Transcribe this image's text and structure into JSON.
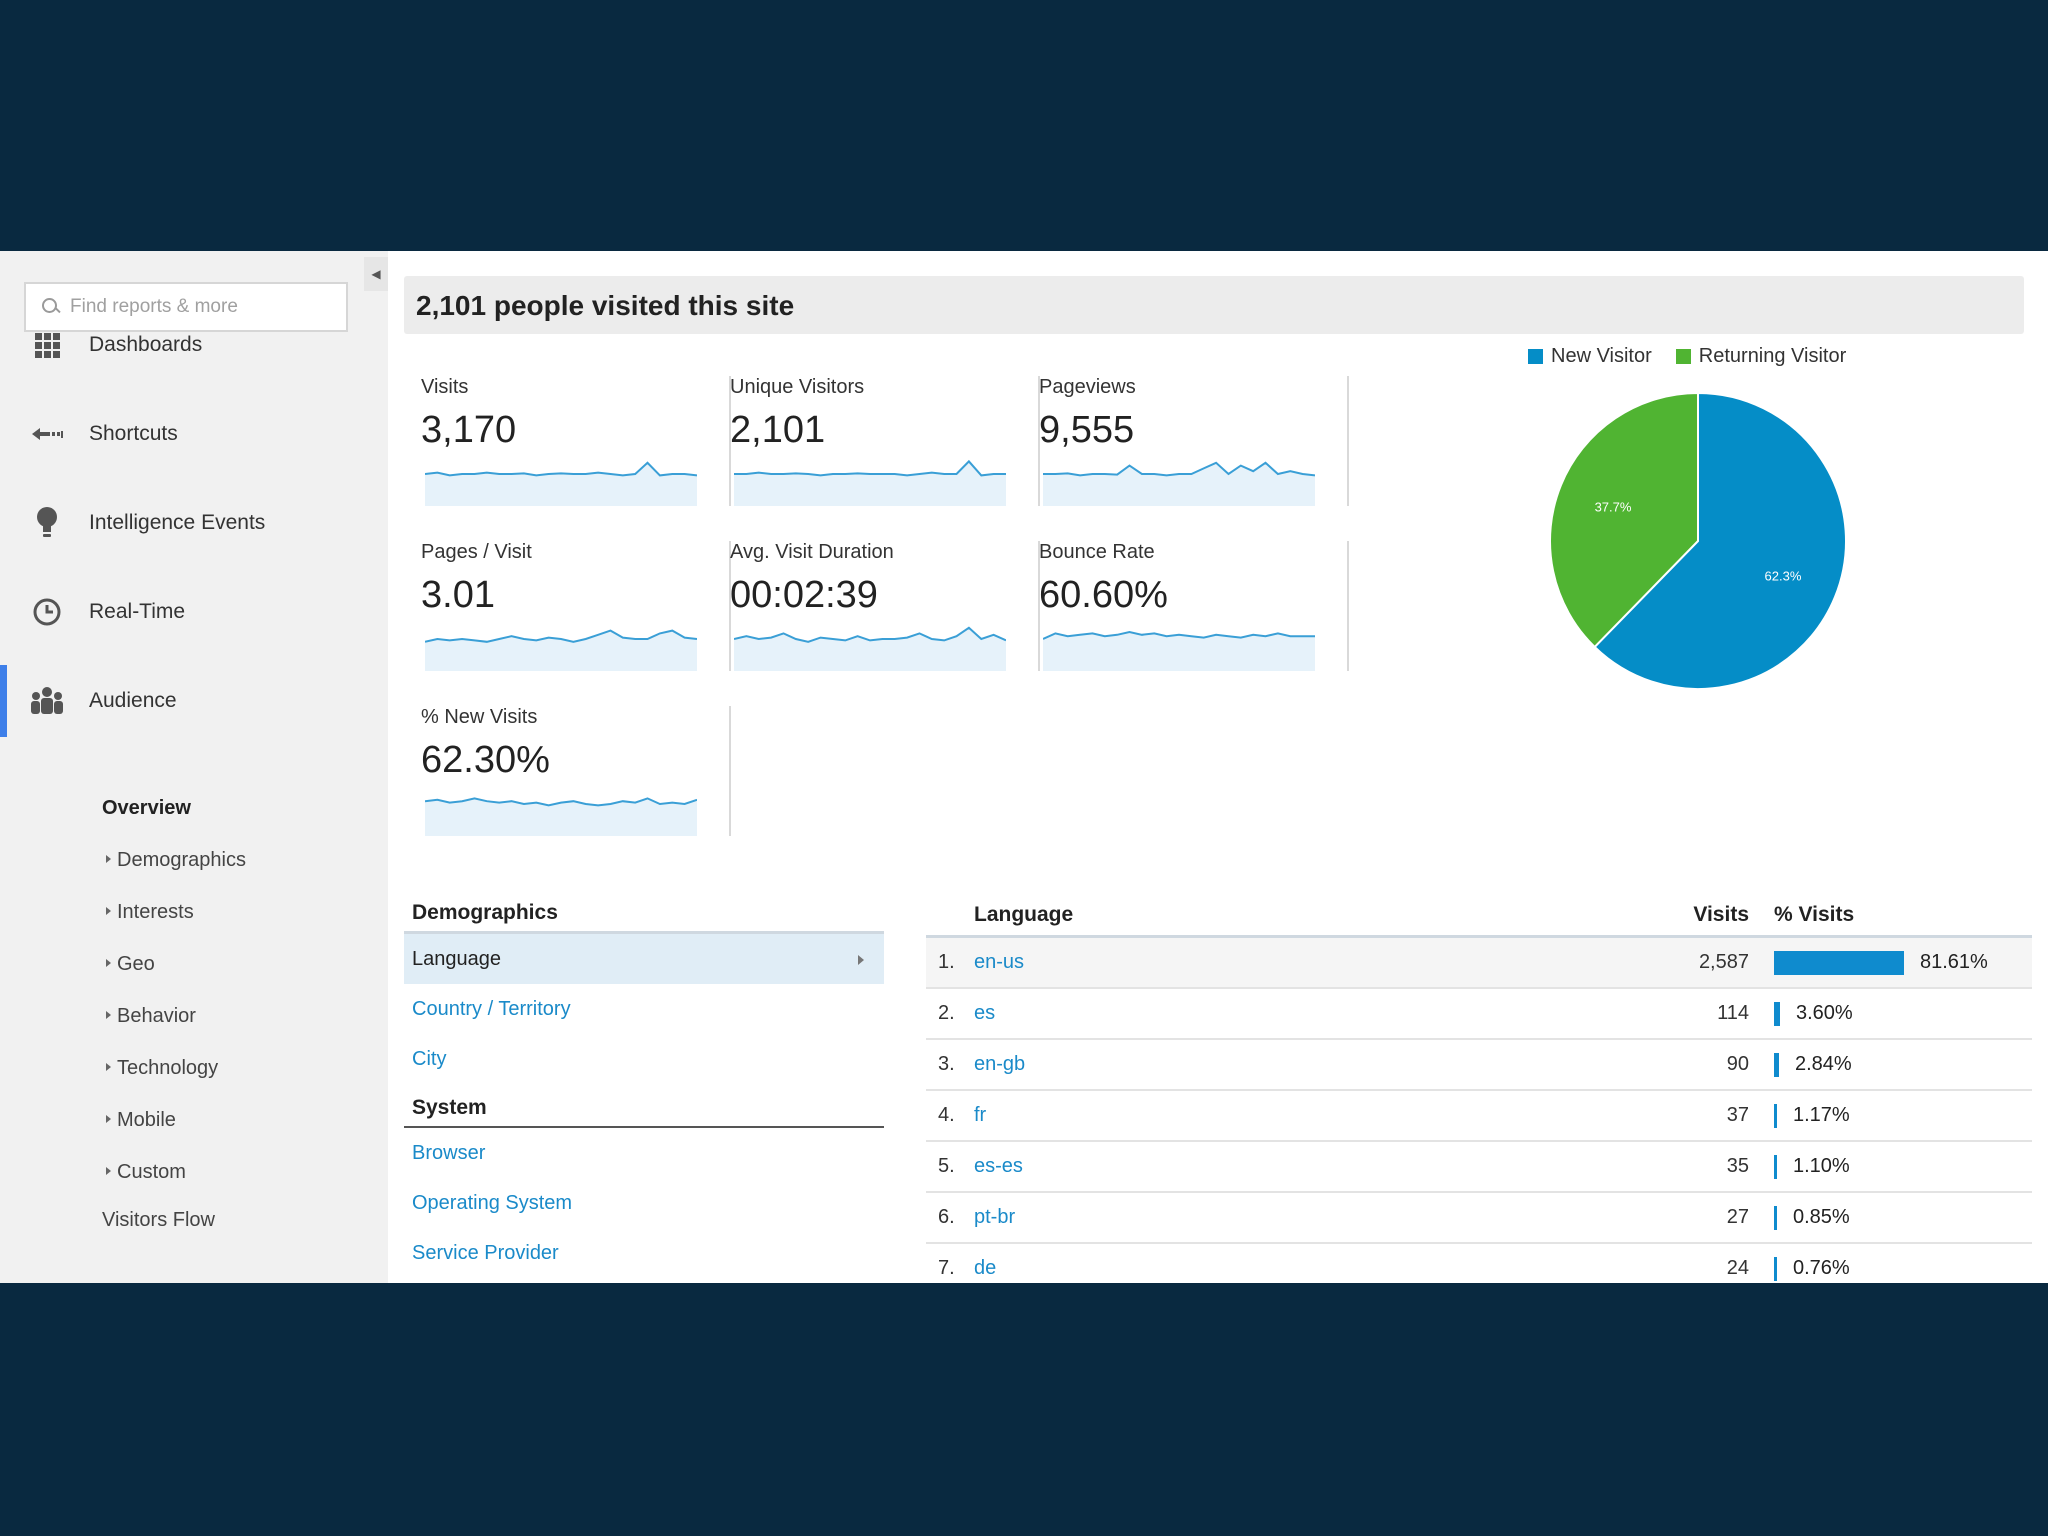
{
  "sidebar": {
    "search_placeholder": "Find reports & more",
    "nav": [
      {
        "label": "Dashboards"
      },
      {
        "label": "Shortcuts"
      },
      {
        "label": "Intelligence Events"
      },
      {
        "label": "Real-Time"
      },
      {
        "label": "Audience"
      }
    ],
    "audience_sub": {
      "overview": "Overview",
      "children": [
        "Demographics",
        "Interests",
        "Geo",
        "Behavior",
        "Technology",
        "Mobile",
        "Custom"
      ],
      "visitors_flow": "Visitors Flow"
    }
  },
  "header": {
    "title": "2,101 people visited this site"
  },
  "metrics": [
    {
      "label": "Visits",
      "value": "3,170"
    },
    {
      "label": "Unique Visitors",
      "value": "2,101"
    },
    {
      "label": "Pageviews",
      "value": "9,555"
    },
    {
      "label": "Pages / Visit",
      "value": "3.01"
    },
    {
      "label": "Avg. Visit Duration",
      "value": "00:02:39"
    },
    {
      "label": "Bounce Rate",
      "value": "60.60%"
    },
    {
      "label": "% New Visits",
      "value": "62.30%"
    }
  ],
  "chart_data": {
    "type": "pie",
    "legend_position": "top",
    "slices": [
      {
        "name": "New Visitor",
        "value": 62.3,
        "label": "62.3%",
        "color": "#058dc7"
      },
      {
        "name": "Returning Visitor",
        "value": 37.7,
        "label": "37.7%",
        "color": "#50b432"
      }
    ]
  },
  "demographics": {
    "header": "Demographics",
    "items": [
      "Language",
      "Country / Territory",
      "City"
    ],
    "system_header": "System",
    "system_items": [
      "Browser",
      "Operating System",
      "Service Provider"
    ]
  },
  "language_table": {
    "headers": {
      "language": "Language",
      "visits": "Visits",
      "pct": "% Visits"
    },
    "rows": [
      {
        "rank": "1.",
        "code": "en-us",
        "visits": "2,587",
        "pct": "81.61%",
        "share": 81.61
      },
      {
        "rank": "2.",
        "code": "es",
        "visits": "114",
        "pct": "3.60%",
        "share": 3.6
      },
      {
        "rank": "3.",
        "code": "en-gb",
        "visits": "90",
        "pct": "2.84%",
        "share": 2.84
      },
      {
        "rank": "4.",
        "code": "fr",
        "visits": "37",
        "pct": "1.17%",
        "share": 1.17
      },
      {
        "rank": "5.",
        "code": "es-es",
        "visits": "35",
        "pct": "1.10%",
        "share": 1.1
      },
      {
        "rank": "6.",
        "code": "pt-br",
        "visits": "27",
        "pct": "0.85%",
        "share": 0.85
      },
      {
        "rank": "7.",
        "code": "de",
        "visits": "24",
        "pct": "0.76%",
        "share": 0.76
      }
    ]
  },
  "colors": {
    "accent": "#3e7fe9",
    "link": "#1a8ac9",
    "bar": "#0f8bce",
    "sparkline": "#3a9fd6"
  }
}
